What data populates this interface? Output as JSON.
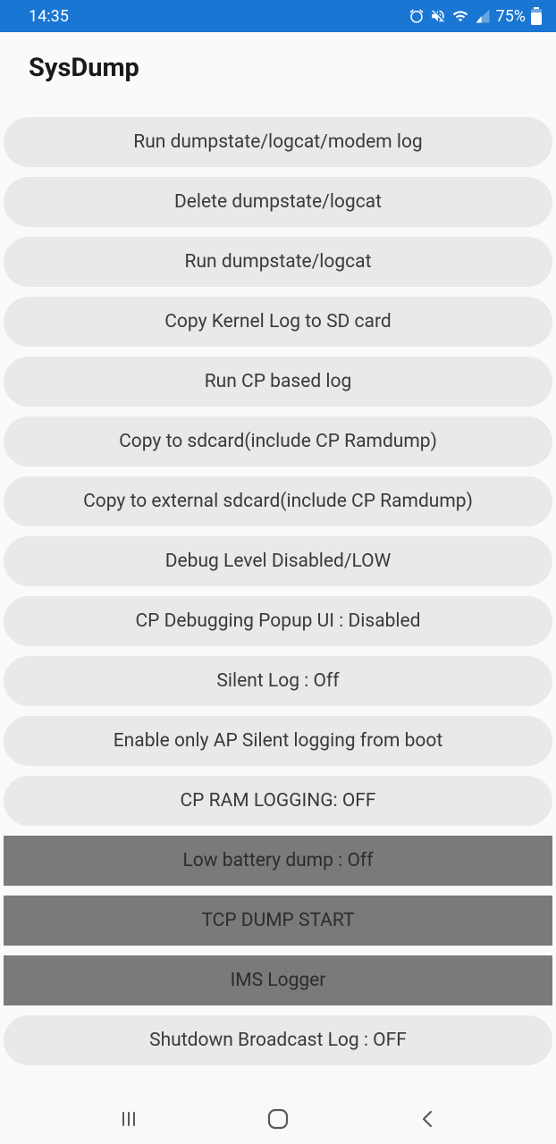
{
  "status_bar": {
    "time": "14:35",
    "battery": "75%"
  },
  "app_bar": {
    "title": "SysDump"
  },
  "buttons": [
    {
      "label": "Run dumpstate/logcat/modem log",
      "variant": "light"
    },
    {
      "label": "Delete dumpstate/logcat",
      "variant": "light"
    },
    {
      "label": "Run dumpstate/logcat",
      "variant": "light"
    },
    {
      "label": "Copy Kernel Log to SD card",
      "variant": "light"
    },
    {
      "label": "Run CP based log",
      "variant": "light"
    },
    {
      "label": "Copy to sdcard(include CP Ramdump)",
      "variant": "light"
    },
    {
      "label": "Copy to external sdcard(include CP Ramdump)",
      "variant": "light"
    },
    {
      "label": "Debug Level Disabled/LOW",
      "variant": "light"
    },
    {
      "label": "CP Debugging Popup UI : Disabled",
      "variant": "light"
    },
    {
      "label": "Silent Log : Off",
      "variant": "light"
    },
    {
      "label": "Enable only AP Silent logging from boot",
      "variant": "light"
    },
    {
      "label": "CP RAM LOGGING: OFF",
      "variant": "light"
    },
    {
      "label": "Low battery dump : Off",
      "variant": "dark"
    },
    {
      "label": "TCP DUMP START",
      "variant": "dark"
    },
    {
      "label": "IMS Logger",
      "variant": "dark"
    },
    {
      "label": "Shutdown Broadcast Log : OFF",
      "variant": "light"
    }
  ],
  "colors": {
    "status_bar_bg": "#1976d2",
    "app_bg": "#fafafa",
    "button_light": "#e9e9e9",
    "button_dark": "#7a7a7a",
    "nav_bg": "#f9f9f9"
  }
}
